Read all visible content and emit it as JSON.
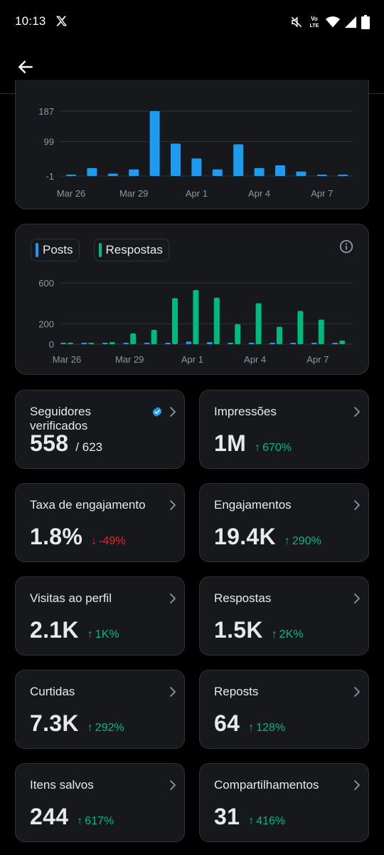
{
  "status_bar": {
    "time": "10:13",
    "app_icon": "x-logo-icon",
    "icons": [
      "mute-icon",
      "volte-icon",
      "wifi-icon",
      "signal-icon",
      "battery-icon"
    ],
    "volte_line1": "Vo",
    "volte_line2": "LTE"
  },
  "header": {
    "back_icon": "back-arrow-icon"
  },
  "colors": {
    "posts": "#1d9bf0",
    "respostas": "#00ba7c",
    "up": "#00ba7c",
    "down": "#f4212e"
  },
  "chart_data": [
    {
      "type": "bar",
      "categories": [
        "Mar 26",
        "Mar 27",
        "Mar 28",
        "Mar 29",
        "Mar 30",
        "Mar 31",
        "Apr 1",
        "Apr 2",
        "Apr 3",
        "Apr 4",
        "Apr 5",
        "Apr 6",
        "Apr 7",
        "Apr 8"
      ],
      "x_tick_labels": [
        "Mar 26",
        "Mar 29",
        "Apr 1",
        "Apr 4",
        "Apr 7"
      ],
      "y_tick_labels": [
        "187",
        "99",
        "-1"
      ],
      "values": [
        -1,
        22,
        6,
        18,
        187,
        93,
        50,
        18,
        91,
        22,
        30,
        12,
        2,
        0
      ],
      "ylim": [
        -1,
        187
      ],
      "grid": true
    },
    {
      "type": "bar",
      "categories": [
        "Mar 26",
        "Mar 27",
        "Mar 28",
        "Mar 29",
        "Mar 30",
        "Mar 31",
        "Apr 1",
        "Apr 2",
        "Apr 3",
        "Apr 4",
        "Apr 5",
        "Apr 6",
        "Apr 7",
        "Apr 8"
      ],
      "x_tick_labels": [
        "Mar 26",
        "Mar 29",
        "Apr 1",
        "Apr 4",
        "Apr 7"
      ],
      "y_tick_labels": [
        "600",
        "200",
        "0"
      ],
      "ylim": [
        0,
        600
      ],
      "grid": true,
      "legend": [
        "Posts",
        "Respostas"
      ],
      "series": [
        {
          "name": "Posts",
          "values": [
            5,
            5,
            5,
            5,
            8,
            12,
            25,
            20,
            5,
            5,
            5,
            5,
            5,
            5
          ]
        },
        {
          "name": "Respostas",
          "values": [
            15,
            5,
            20,
            105,
            140,
            450,
            530,
            455,
            195,
            400,
            170,
            325,
            240,
            35
          ]
        }
      ]
    }
  ],
  "chart2": {
    "legend_posts": "Posts",
    "legend_respostas": "Respostas",
    "info_icon": "info-icon"
  },
  "metrics": [
    {
      "label": "Seguidores verificados",
      "value": "558",
      "total": "/ 623",
      "verified": true
    },
    {
      "label": "Impressões",
      "value": "1M",
      "change": "670%",
      "direction": "up"
    },
    {
      "label": "Taxa de engajamento",
      "value": "1.8%",
      "change": "-49%",
      "direction": "down"
    },
    {
      "label": "Engajamentos",
      "value": "19.4K",
      "change": "290%",
      "direction": "up"
    },
    {
      "label": "Visitas ao perfil",
      "value": "2.1K",
      "change": "1K%",
      "direction": "up"
    },
    {
      "label": "Respostas",
      "value": "1.5K",
      "change": "2K%",
      "direction": "up"
    },
    {
      "label": "Curtidas",
      "value": "7.3K",
      "change": "292%",
      "direction": "up"
    },
    {
      "label": "Reposts",
      "value": "64",
      "change": "128%",
      "direction": "up"
    },
    {
      "label": "Itens salvos",
      "value": "244",
      "change": "617%",
      "direction": "up"
    },
    {
      "label": "Compartilhamentos",
      "value": "31",
      "change": "416%",
      "direction": "up"
    }
  ],
  "arrows": {
    "up": "↑",
    "down": "↓"
  }
}
